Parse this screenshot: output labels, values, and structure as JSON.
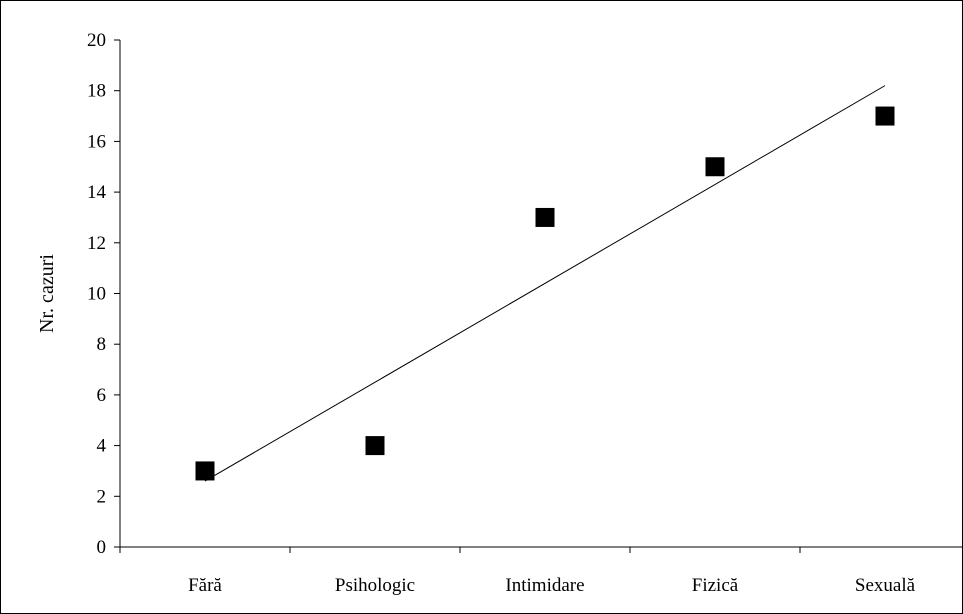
{
  "chart_data": {
    "type": "scatter",
    "title": "",
    "xlabel": "",
    "ylabel": "Nr. cazuri",
    "categories": [
      "Fără",
      "Psihologic",
      "Intimidare",
      "Fizică",
      "Sexuală"
    ],
    "series": [
      {
        "values": [
          3,
          4,
          13,
          15,
          17
        ],
        "marker": "square",
        "color": "#000000"
      }
    ],
    "trendline": {
      "type": "linear",
      "start": 2.6,
      "end": 18.2,
      "color": "#000000"
    },
    "ylim": [
      0,
      20
    ],
    "yticks": [
      0,
      2,
      4,
      6,
      8,
      10,
      12,
      14,
      16,
      18,
      20
    ],
    "grid": false,
    "legend": "none"
  }
}
